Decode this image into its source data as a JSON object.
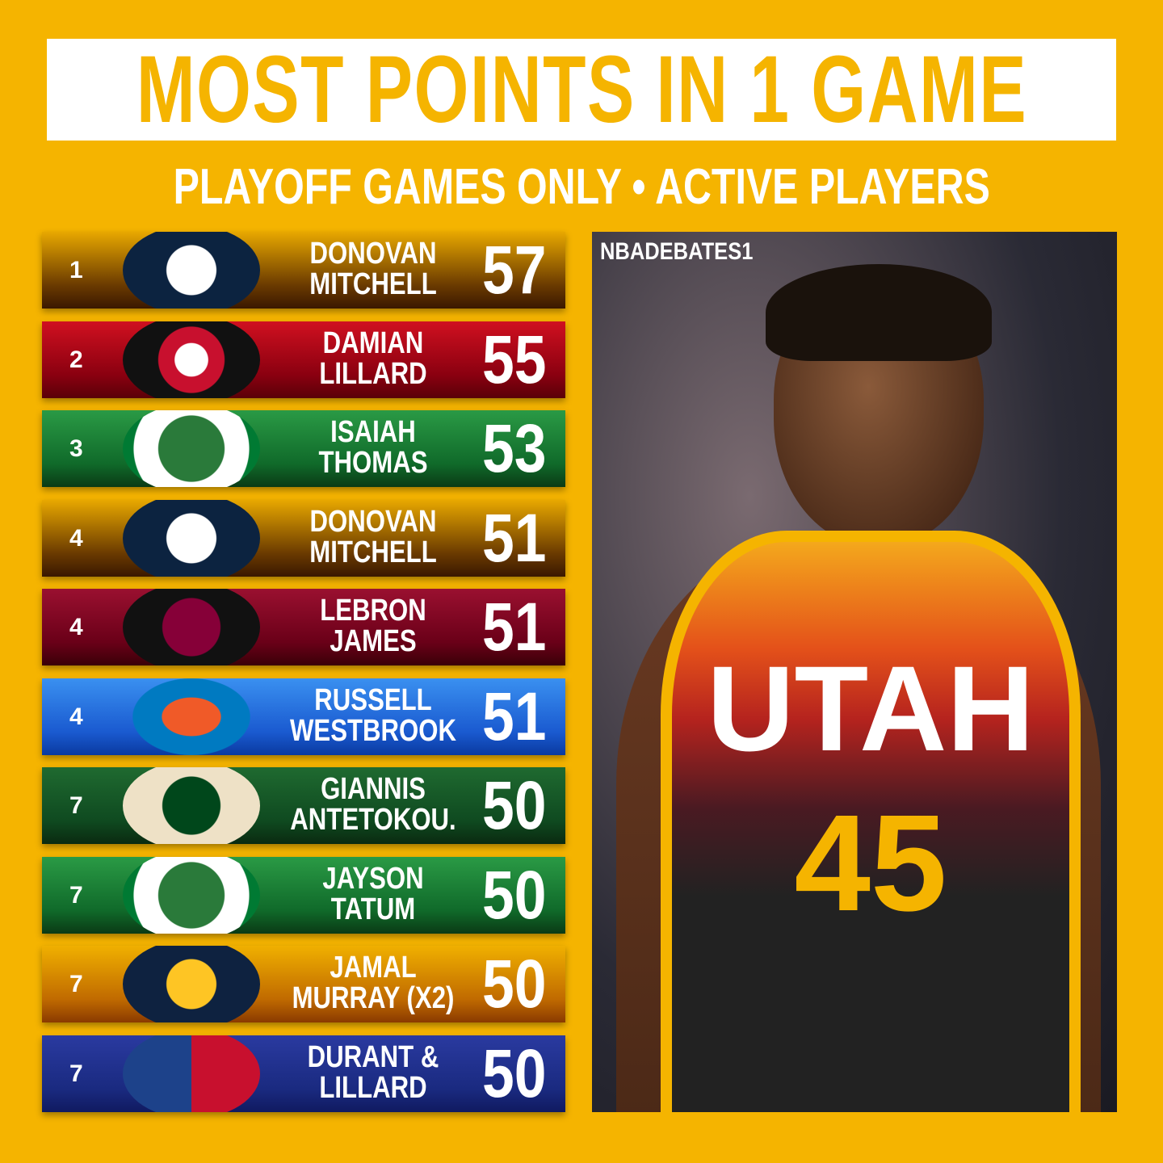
{
  "header": {
    "title": "MOST POINTS IN 1 GAME",
    "subtitle": "PLAYOFF GAMES ONLY • ACTIVE PLAYERS"
  },
  "rows": [
    {
      "rank": "1",
      "name": [
        "DONOVAN",
        "MITCHELL"
      ],
      "points": "57"
    },
    {
      "rank": "2",
      "name": [
        "DAMIAN",
        "LILLARD"
      ],
      "points": "55"
    },
    {
      "rank": "3",
      "name": [
        "ISAIAH",
        "THOMAS"
      ],
      "points": "53"
    },
    {
      "rank": "4",
      "name": [
        "DONOVAN",
        "MITCHELL"
      ],
      "points": "51"
    },
    {
      "rank": "4",
      "name": [
        "LEBRON",
        "JAMES"
      ],
      "points": "51"
    },
    {
      "rank": "4",
      "name": [
        "RUSSELL",
        "WESTBROOK"
      ],
      "points": "51"
    },
    {
      "rank": "7",
      "name": [
        "GIANNIS",
        "ANTETOKOU."
      ],
      "points": "50"
    },
    {
      "rank": "7",
      "name": [
        "JAYSON",
        "TATUM"
      ],
      "points": "50"
    },
    {
      "rank": "7",
      "name": [
        "JAMAL",
        "MURRAY (X2)"
      ],
      "points": "50"
    },
    {
      "rank": "7",
      "name": [
        "DURANT &",
        "LILLARD"
      ],
      "points": "50"
    }
  ],
  "photo": {
    "watermark": "NBADEBATES1",
    "jersey_name": "UTAH",
    "jersey_number": "45"
  }
}
